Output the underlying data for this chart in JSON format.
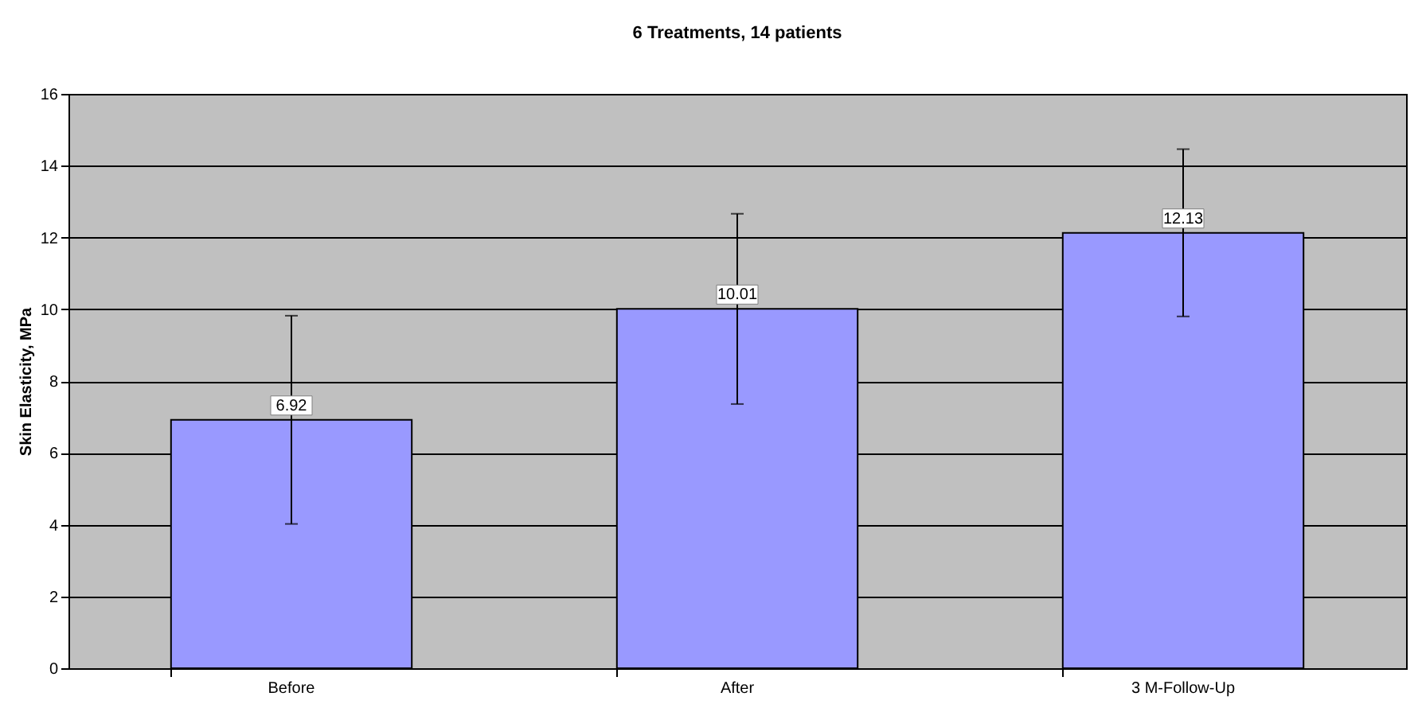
{
  "chart_data": {
    "type": "bar",
    "title": "6 Treatments, 14 patients",
    "ylabel": "Skin Elasticity,  MPa",
    "categories": [
      "Before",
      "After",
      "3 M-Follow-Up"
    ],
    "values": [
      6.92,
      10.01,
      12.13
    ],
    "color": "#9999ff",
    "errors": [
      2.9,
      2.65,
      2.33
    ],
    "ylim": [
      0,
      16
    ],
    "yticks": [
      0,
      2,
      4,
      6,
      8,
      10,
      12,
      14,
      16
    ],
    "grid": "y",
    "data_labels": true
  }
}
